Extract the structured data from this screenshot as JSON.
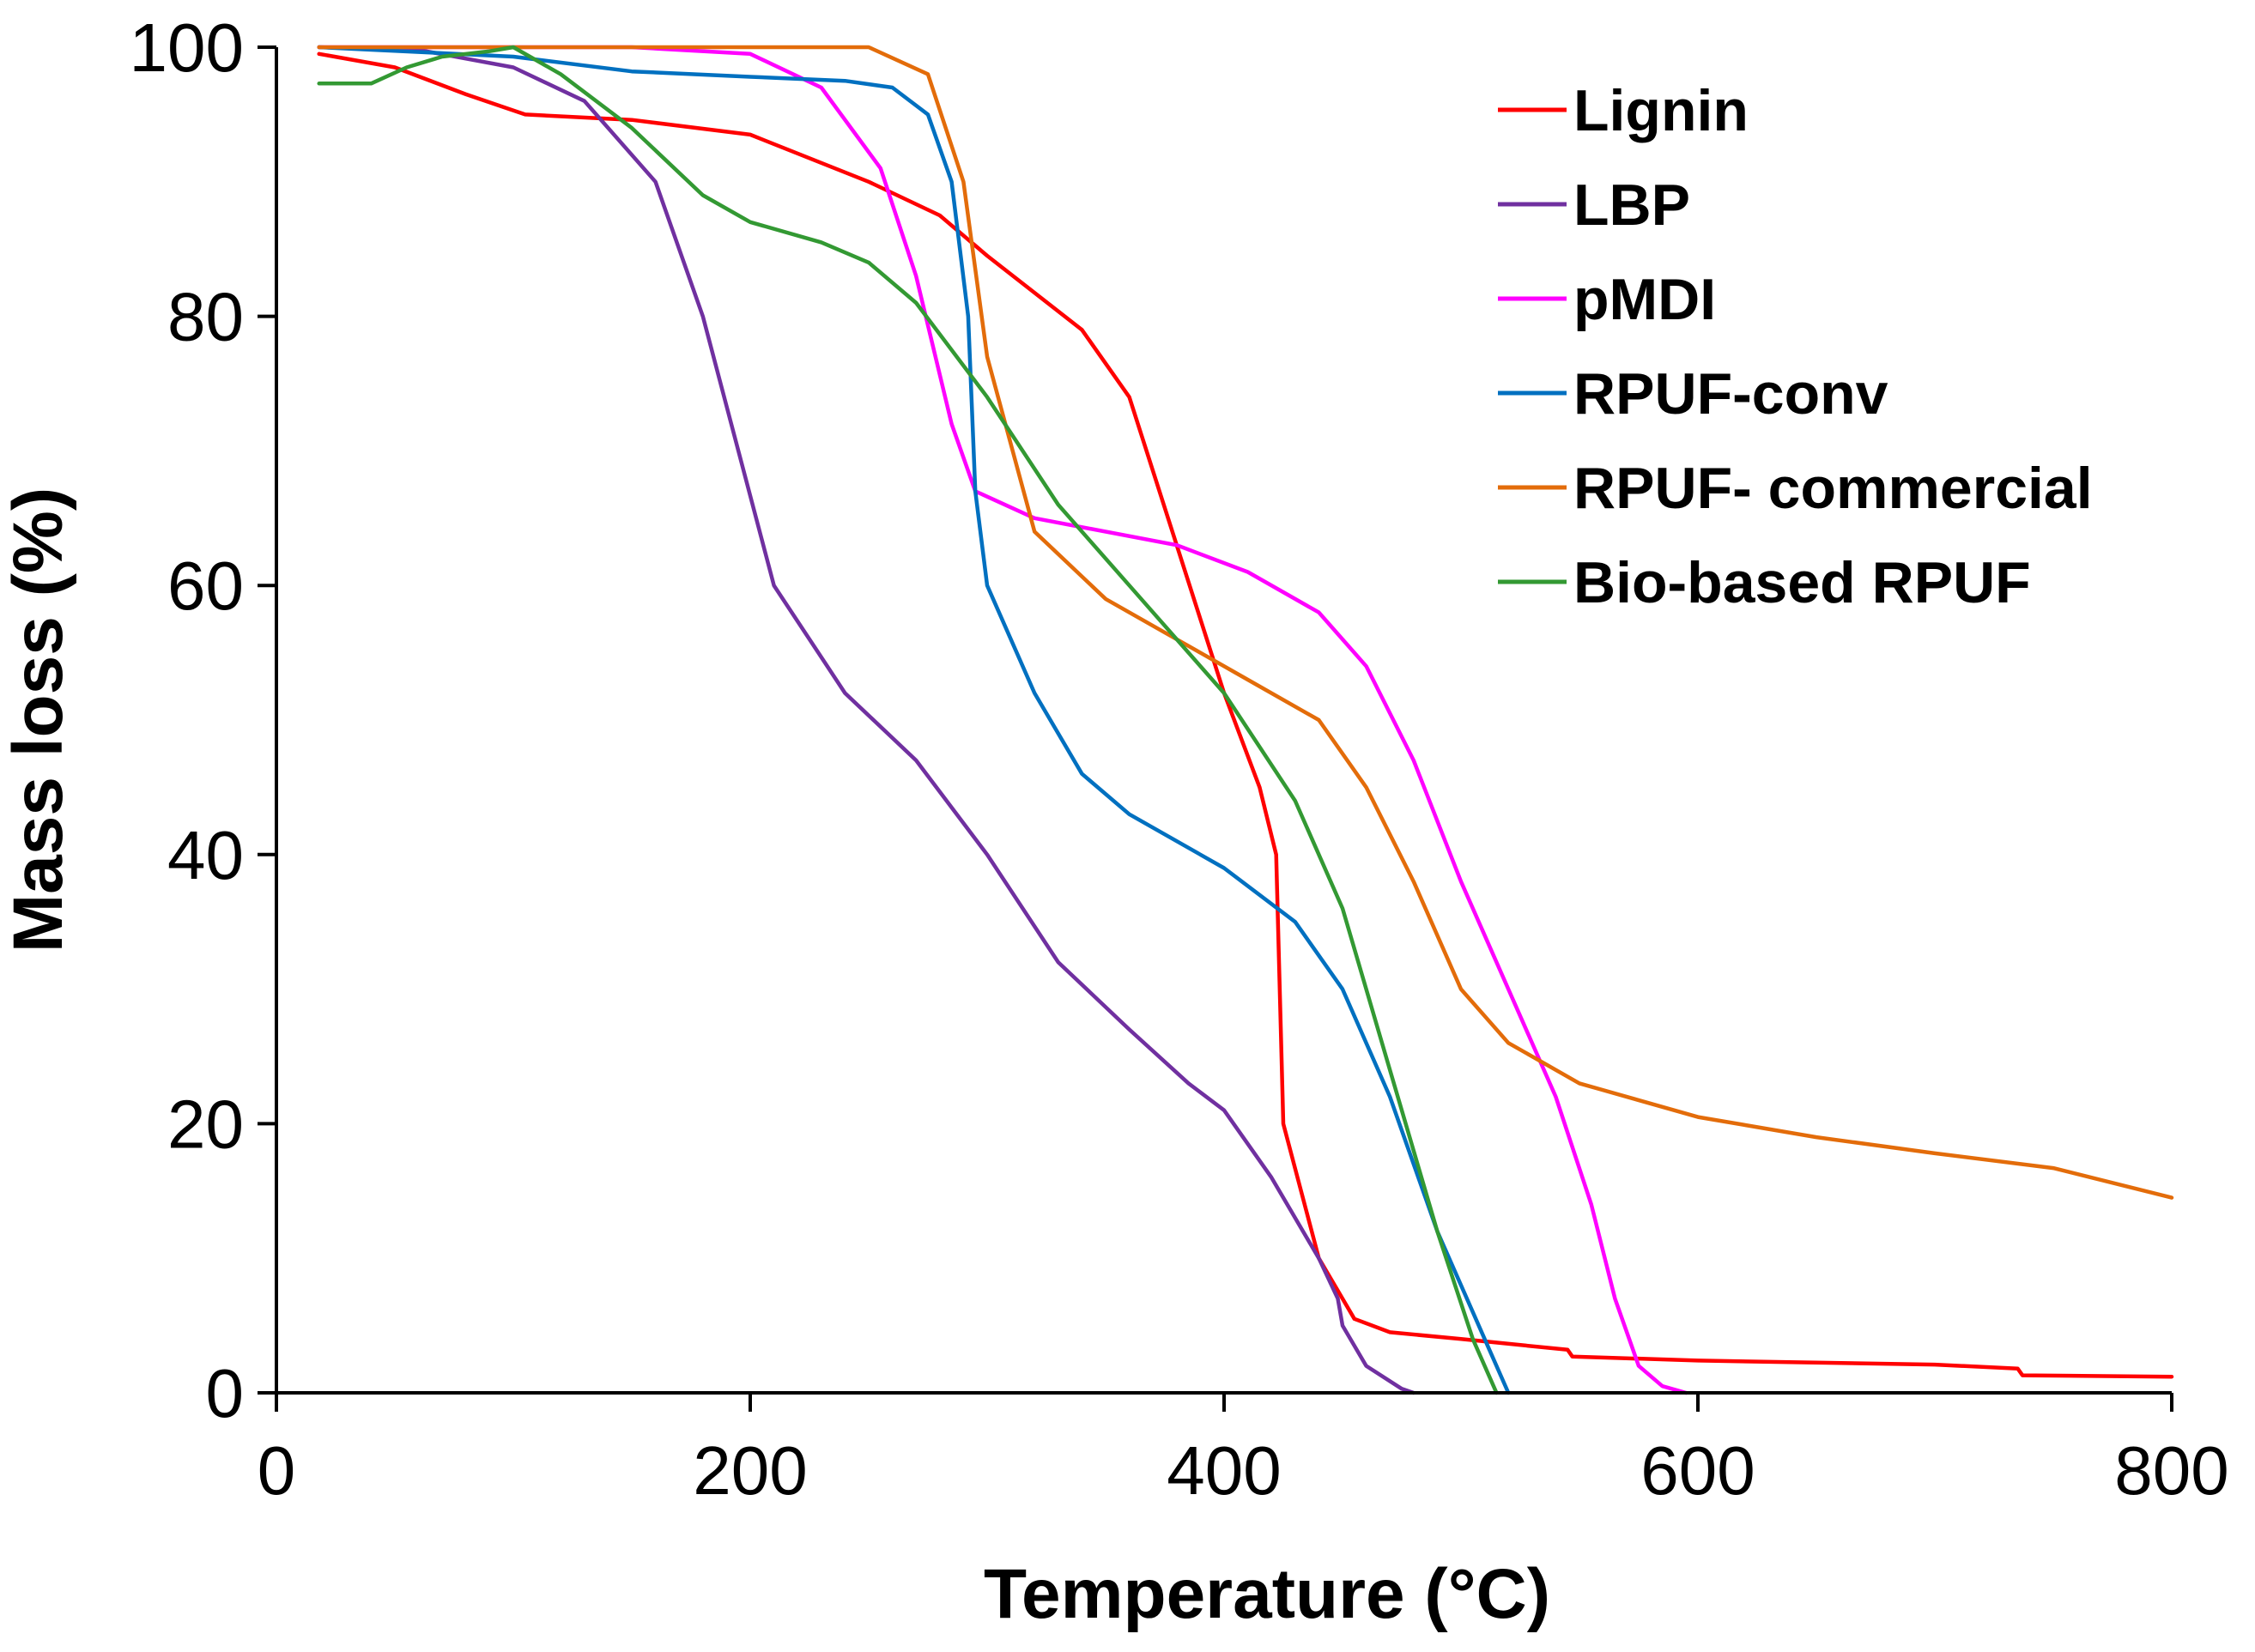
{
  "chart_data": {
    "type": "line",
    "title": "",
    "xlabel": "Temperature (°C)",
    "ylabel": "Mass loss (%)",
    "xlim": [
      0,
      800
    ],
    "ylim": [
      0,
      100
    ],
    "xticks": [
      0,
      200,
      400,
      600,
      800
    ],
    "yticks": [
      0,
      20,
      40,
      60,
      80,
      100
    ],
    "grid": false,
    "legend_position": "top-right",
    "series": [
      {
        "name": "Lignin",
        "color": "#ff0000",
        "points": [
          [
            18,
            99.5
          ],
          [
            50,
            98.5
          ],
          [
            80,
            96.5
          ],
          [
            105,
            95
          ],
          [
            150,
            94.6
          ],
          [
            200,
            93.5
          ],
          [
            250,
            90
          ],
          [
            280,
            87.5
          ],
          [
            300,
            84.5
          ],
          [
            340,
            79
          ],
          [
            360,
            74
          ],
          [
            380,
            63
          ],
          [
            400,
            52
          ],
          [
            415,
            45
          ],
          [
            422,
            40
          ],
          [
            425,
            20
          ],
          [
            440,
            10
          ],
          [
            455,
            5.5
          ],
          [
            470,
            4.5
          ],
          [
            500,
            4
          ],
          [
            545,
            3.2
          ],
          [
            547,
            2.7
          ],
          [
            600,
            2.4
          ],
          [
            700,
            2.1
          ],
          [
            735,
            1.8
          ],
          [
            737,
            1.3
          ],
          [
            800,
            1.2
          ]
        ]
      },
      {
        "name": "LBP",
        "color": "#7030a0",
        "points": [
          [
            18,
            100
          ],
          [
            60,
            99.8
          ],
          [
            100,
            98.5
          ],
          [
            130,
            96
          ],
          [
            160,
            90
          ],
          [
            180,
            80
          ],
          [
            195,
            70
          ],
          [
            210,
            60
          ],
          [
            240,
            52
          ],
          [
            270,
            47
          ],
          [
            300,
            40
          ],
          [
            330,
            32
          ],
          [
            360,
            27
          ],
          [
            385,
            23
          ],
          [
            400,
            21
          ],
          [
            420,
            16
          ],
          [
            440,
            10
          ],
          [
            448,
            7
          ],
          [
            450,
            5
          ],
          [
            460,
            2
          ],
          [
            475,
            0.3
          ],
          [
            480,
            0
          ]
        ]
      },
      {
        "name": "pMDI",
        "color": "#ff00ff",
        "points": [
          [
            18,
            100
          ],
          [
            150,
            100
          ],
          [
            200,
            99.5
          ],
          [
            230,
            97
          ],
          [
            255,
            91
          ],
          [
            270,
            83
          ],
          [
            285,
            72
          ],
          [
            295,
            67
          ],
          [
            320,
            65
          ],
          [
            380,
            63
          ],
          [
            410,
            61
          ],
          [
            440,
            58
          ],
          [
            460,
            54
          ],
          [
            480,
            47
          ],
          [
            500,
            38
          ],
          [
            520,
            30
          ],
          [
            540,
            22
          ],
          [
            555,
            14
          ],
          [
            565,
            7
          ],
          [
            575,
            2
          ],
          [
            585,
            0.5
          ],
          [
            595,
            0
          ]
        ]
      },
      {
        "name": "RPUF-conv",
        "color": "#0070c0",
        "points": [
          [
            18,
            100
          ],
          [
            100,
            99.3
          ],
          [
            150,
            98.2
          ],
          [
            200,
            97.8
          ],
          [
            240,
            97.5
          ],
          [
            260,
            97
          ],
          [
            275,
            95
          ],
          [
            285,
            90
          ],
          [
            292,
            80
          ],
          [
            295,
            67
          ],
          [
            300,
            60
          ],
          [
            320,
            52
          ],
          [
            340,
            46
          ],
          [
            360,
            43
          ],
          [
            400,
            39
          ],
          [
            430,
            35
          ],
          [
            450,
            30
          ],
          [
            470,
            22
          ],
          [
            490,
            12
          ],
          [
            510,
            4
          ],
          [
            520,
            0
          ]
        ]
      },
      {
        "name": "RPUF- commercial",
        "color": "#e36c0a",
        "points": [
          [
            18,
            100
          ],
          [
            200,
            100
          ],
          [
            250,
            100
          ],
          [
            275,
            98
          ],
          [
            290,
            90
          ],
          [
            300,
            77
          ],
          [
            320,
            64
          ],
          [
            350,
            59
          ],
          [
            380,
            56
          ],
          [
            410,
            53
          ],
          [
            440,
            50
          ],
          [
            460,
            45
          ],
          [
            480,
            38
          ],
          [
            500,
            30
          ],
          [
            520,
            26
          ],
          [
            550,
            23
          ],
          [
            600,
            20.5
          ],
          [
            650,
            19
          ],
          [
            700,
            17.8
          ],
          [
            750,
            16.7
          ],
          [
            800,
            14.5
          ]
        ]
      },
      {
        "name": "Bio-based RPUF",
        "color": "#339933",
        "points": [
          [
            18,
            97.3
          ],
          [
            40,
            97.3
          ],
          [
            55,
            98.5
          ],
          [
            70,
            99.3
          ],
          [
            90,
            99.7
          ],
          [
            100,
            100
          ],
          [
            120,
            98
          ],
          [
            150,
            94
          ],
          [
            180,
            89
          ],
          [
            200,
            87
          ],
          [
            230,
            85.5
          ],
          [
            250,
            84
          ],
          [
            270,
            81
          ],
          [
            300,
            74
          ],
          [
            330,
            66
          ],
          [
            360,
            60
          ],
          [
            400,
            52
          ],
          [
            430,
            44
          ],
          [
            450,
            36
          ],
          [
            470,
            24
          ],
          [
            490,
            12
          ],
          [
            505,
            4
          ],
          [
            515,
            0
          ]
        ]
      }
    ]
  }
}
